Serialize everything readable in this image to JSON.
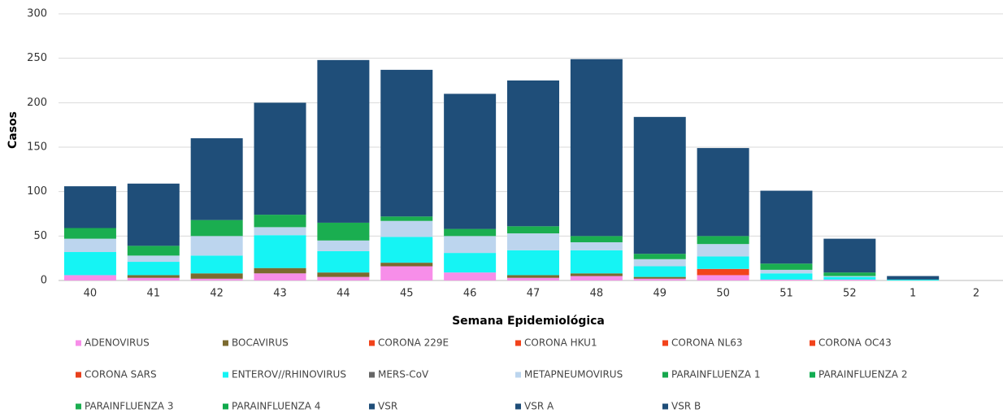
{
  "chart_data": {
    "type": "stacked_bar",
    "y_label": "Casos",
    "x_label": "Semana Epidemiológica",
    "categories": [
      "40",
      "41",
      "42",
      "43",
      "44",
      "45",
      "46",
      "47",
      "48",
      "49",
      "50",
      "51",
      "52",
      "1",
      "2"
    ],
    "ylim": [
      0,
      300
    ],
    "yticks": [
      0,
      50,
      100,
      150,
      200,
      250,
      300
    ],
    "grid": true,
    "series": [
      {
        "name": "ADENOVIRUS",
        "color": "#f78ee9",
        "values": [
          6,
          3,
          2,
          8,
          4,
          16,
          9,
          3,
          5,
          2,
          6,
          1,
          1,
          0,
          0
        ]
      },
      {
        "name": "BOCAVIRUS",
        "color": "#7b6a2f",
        "values": [
          0,
          3,
          6,
          6,
          5,
          4,
          0,
          3,
          3,
          2,
          0,
          0,
          0,
          0,
          0
        ]
      },
      {
        "name": "CORONA 229E",
        "color": "#f2431b",
        "values": [
          0,
          0,
          0,
          0,
          0,
          0,
          0,
          0,
          0,
          0,
          0,
          0,
          0,
          0,
          0
        ]
      },
      {
        "name": "CORONA HKU1",
        "color": "#f2431b",
        "values": [
          0,
          0,
          0,
          0,
          0,
          0,
          0,
          0,
          0,
          0,
          0,
          0,
          0,
          0,
          0
        ]
      },
      {
        "name": "CORONA NL63",
        "color": "#f2431b",
        "values": [
          0,
          0,
          0,
          0,
          0,
          0,
          0,
          0,
          0,
          0,
          7,
          0,
          0,
          0,
          0
        ]
      },
      {
        "name": "CORONA OC43",
        "color": "#f2431b",
        "values": [
          0,
          0,
          0,
          0,
          0,
          0,
          0,
          0,
          0,
          0,
          0,
          0,
          0,
          0,
          0
        ]
      },
      {
        "name": "CORONA SARS",
        "color": "#e8401c",
        "values": [
          0,
          0,
          0,
          0,
          0,
          0,
          0,
          0,
          0,
          0,
          0,
          0,
          0,
          0,
          0
        ]
      },
      {
        "name": "ENTEROV//RHINOVIRUS",
        "color": "#15f4f4",
        "values": [
          26,
          15,
          20,
          37,
          24,
          29,
          22,
          28,
          26,
          12,
          14,
          7,
          3,
          1,
          0
        ]
      },
      {
        "name": "MERS-CoV",
        "color": "#666666",
        "values": [
          0,
          0,
          0,
          0,
          0,
          0,
          0,
          0,
          0,
          0,
          0,
          0,
          0,
          0,
          0
        ]
      },
      {
        "name": "METAPNEUMOVIRUS",
        "color": "#bcd5ee",
        "values": [
          15,
          7,
          22,
          9,
          12,
          18,
          19,
          19,
          9,
          8,
          14,
          4,
          1,
          0,
          0
        ]
      },
      {
        "name": "PARAINFLUENZA 1",
        "color": "#17a84e",
        "values": [
          0,
          0,
          0,
          0,
          0,
          0,
          0,
          0,
          0,
          0,
          0,
          0,
          0,
          0,
          0
        ]
      },
      {
        "name": "PARAINFLUENZA 2",
        "color": "#12ad52",
        "values": [
          0,
          0,
          0,
          0,
          0,
          0,
          0,
          0,
          0,
          0,
          0,
          0,
          0,
          0,
          0
        ]
      },
      {
        "name": "PARAINFLUENZA 3",
        "color": "#1aae50",
        "values": [
          12,
          11,
          18,
          14,
          20,
          5,
          8,
          8,
          7,
          6,
          9,
          7,
          4,
          0,
          0
        ]
      },
      {
        "name": "PARAINFLUENZA 4",
        "color": "#10a94c",
        "values": [
          0,
          0,
          0,
          0,
          0,
          0,
          0,
          0,
          0,
          0,
          0,
          0,
          0,
          0,
          0
        ]
      },
      {
        "name": "VSR",
        "color": "#1f4e79",
        "values": [
          47,
          70,
          92,
          126,
          183,
          165,
          152,
          164,
          199,
          154,
          99,
          82,
          38,
          4,
          0
        ]
      },
      {
        "name": "VSR A",
        "color": "#1f4e79",
        "values": [
          0,
          0,
          0,
          0,
          0,
          0,
          0,
          0,
          0,
          0,
          0,
          0,
          0,
          0,
          0
        ]
      },
      {
        "name": "VSR B",
        "color": "#1f4e79",
        "values": [
          0,
          0,
          0,
          0,
          0,
          0,
          0,
          0,
          0,
          0,
          0,
          0,
          0,
          0,
          0
        ]
      }
    ]
  }
}
